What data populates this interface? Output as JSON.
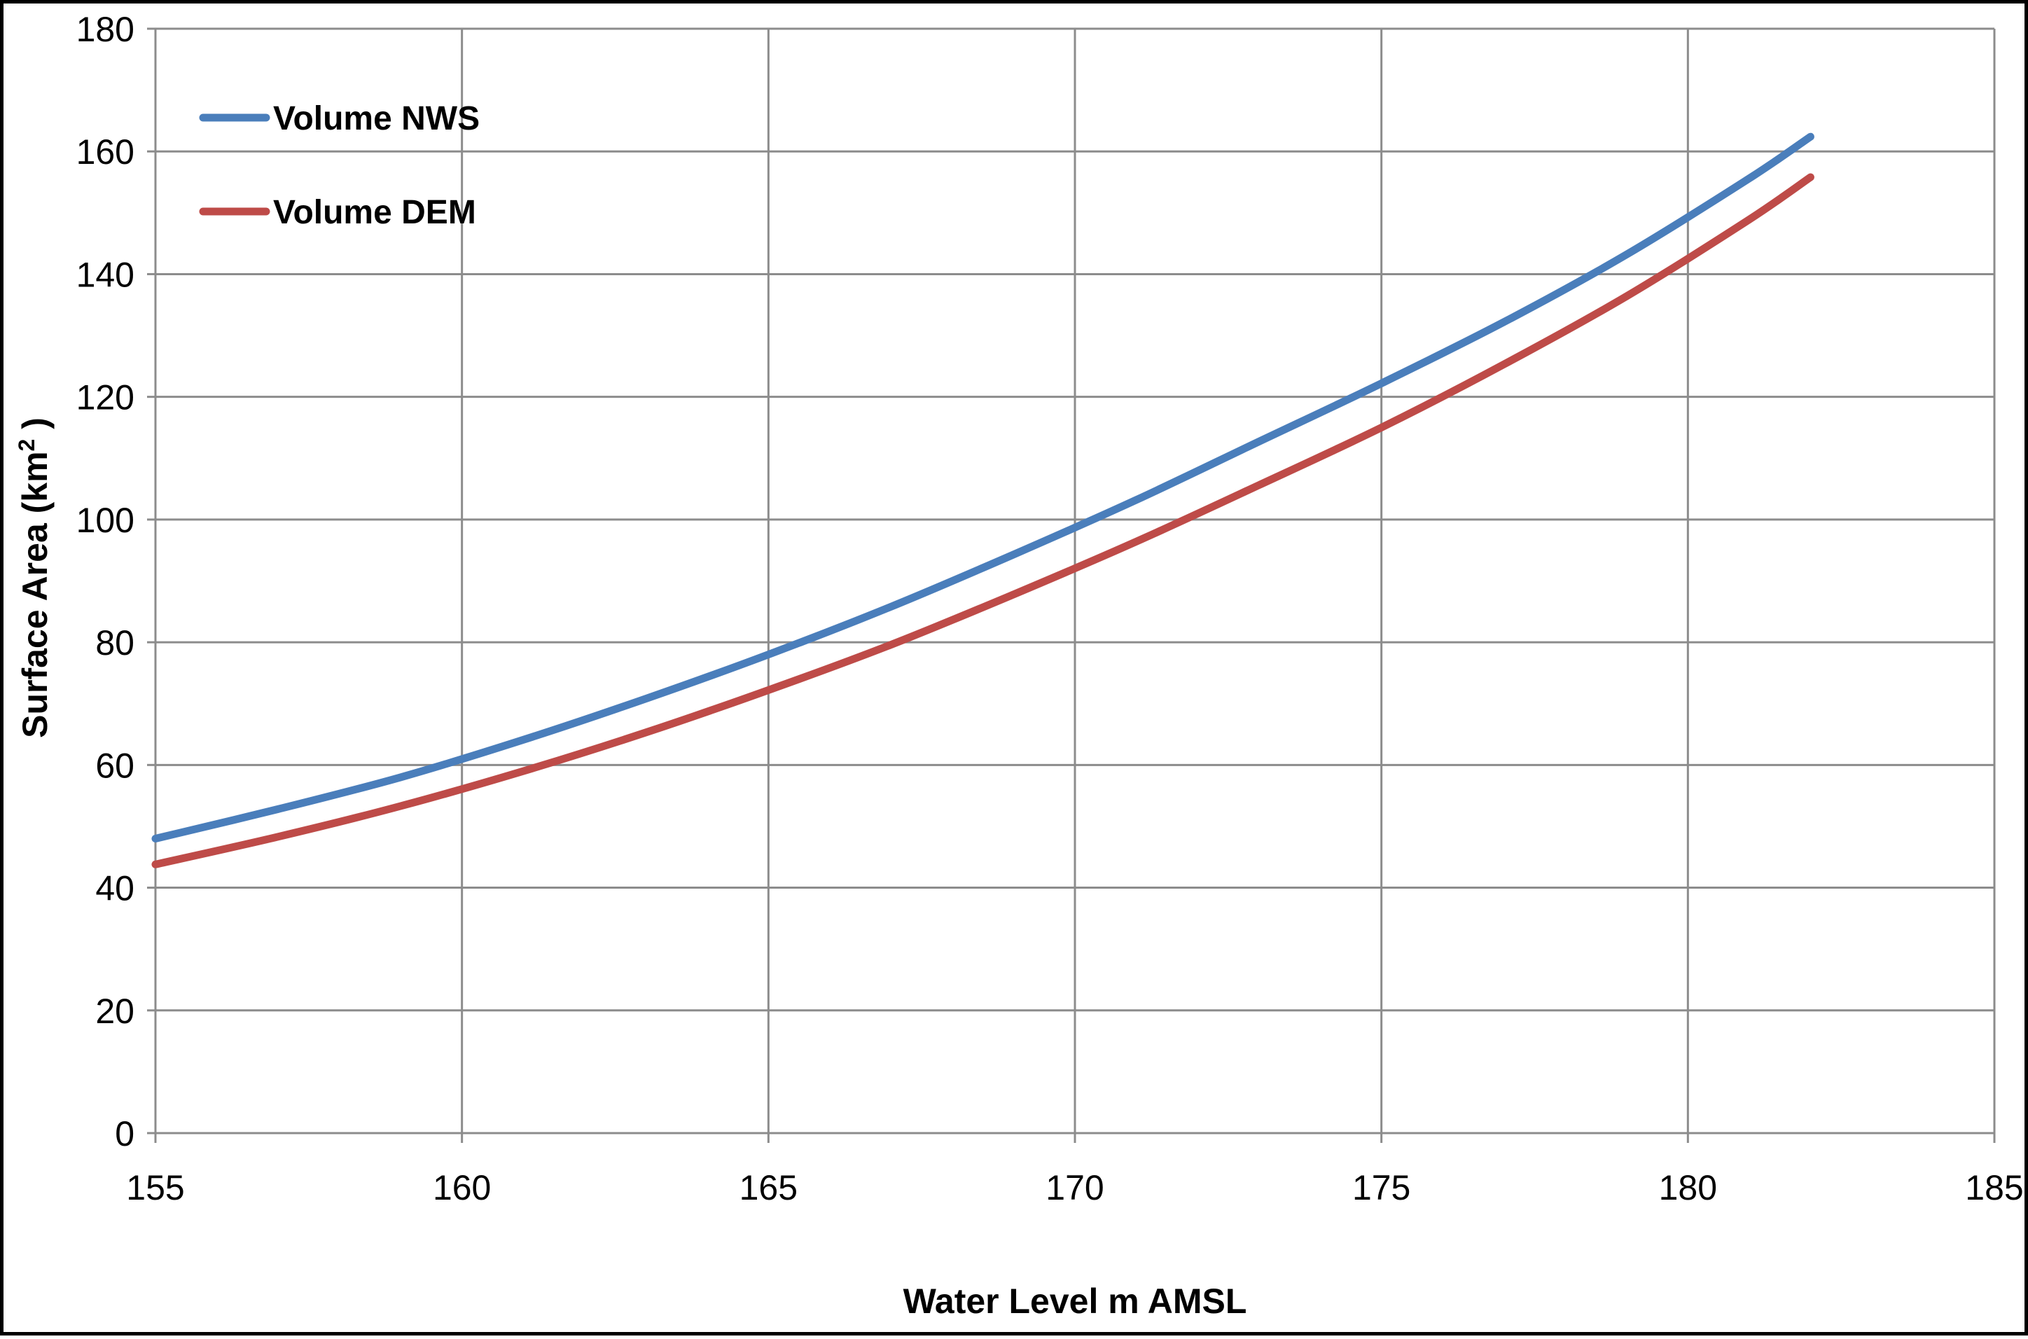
{
  "chart_data": {
    "type": "line",
    "title": "",
    "xlabel": "Water Level m AMSL",
    "ylabel_main": "Surface Area (km",
    "ylabel_sup": "2",
    "ylabel_tail": " )",
    "xlim": [
      155,
      185
    ],
    "ylim": [
      0,
      180
    ],
    "xticks": [
      155,
      160,
      165,
      170,
      175,
      180,
      185
    ],
    "yticks": [
      0,
      20,
      40,
      60,
      80,
      100,
      120,
      140,
      160,
      180
    ],
    "grid": true,
    "legend_position": "top-left",
    "x": [
      155,
      157,
      159,
      161,
      163,
      165,
      167,
      169,
      171,
      173,
      175,
      177,
      179,
      181,
      182
    ],
    "series": [
      {
        "name": "Volume NWS",
        "color": "#4a7ebb",
        "values": [
          48,
          52.8,
          58,
          64.1,
          70.8,
          78,
          85.8,
          94.3,
          103.2,
          112.7,
          122.2,
          132.2,
          143.2,
          155.6,
          162.4
        ]
      },
      {
        "name": "Volume DEM",
        "color": "#be4b48",
        "values": [
          43.8,
          48.3,
          53.3,
          59,
          65.3,
          72.2,
          79.6,
          87.8,
          96.4,
          105.6,
          115,
          125.3,
          136.4,
          148.9,
          155.8
        ]
      }
    ]
  }
}
